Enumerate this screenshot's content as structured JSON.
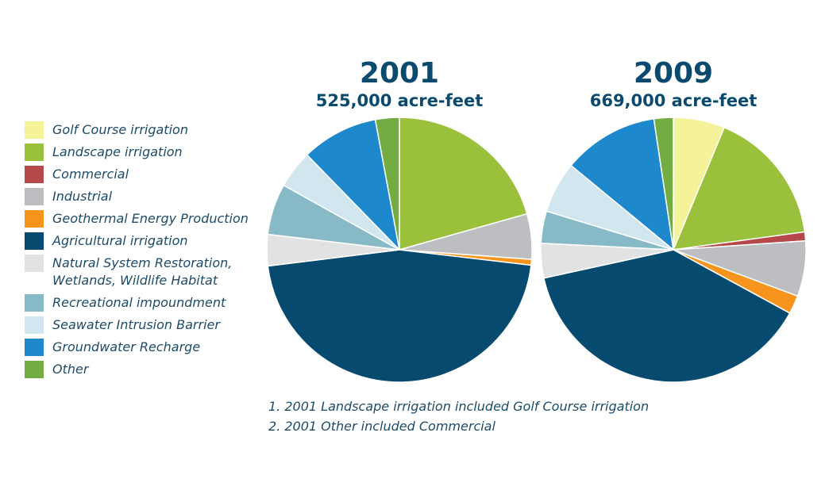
{
  "legend": [
    {
      "label": "Golf Course irrigation",
      "color": "#f5f39a"
    },
    {
      "label": "Landscape irrigation",
      "color": "#9bc13c"
    },
    {
      "label": "Commercial",
      "color": "#b5484b"
    },
    {
      "label": "Industrial",
      "color": "#bdbec2"
    },
    {
      "label": "Geothermal Energy Production",
      "color": "#f7941d"
    },
    {
      "label": "Agricultural irrigation",
      "color": "#074a70"
    },
    {
      "label": "Natural System Restoration,\nWetlands, Wildlife Habitat",
      "color": "#e1e2e3"
    },
    {
      "label": "Recreational impoundment",
      "color": "#87bac6"
    },
    {
      "label": "Seawater Intrusion Barrier",
      "color": "#d1e6ee"
    },
    {
      "label": "Groundwater Recharge",
      "color": "#1e88cc"
    },
    {
      "label": "Other",
      "color": "#72ac43"
    }
  ],
  "chart_data": [
    {
      "type": "pie",
      "title": "2001",
      "subtitle": "525,000 acre-feet",
      "categories": [
        "Golf Course irrigation",
        "Landscape irrigation",
        "Commercial",
        "Industrial",
        "Geothermal Energy Production",
        "Agricultural irrigation",
        "Natural System Restoration, Wetlands, Wildlife Habitat",
        "Recreational impoundment",
        "Seawater Intrusion Barrier",
        "Groundwater Recharge",
        "Other"
      ],
      "values": [
        0,
        20.5,
        0,
        5.5,
        0.7,
        45.9,
        3.8,
        6.2,
        4.6,
        9.3,
        2.9
      ]
    },
    {
      "type": "pie",
      "title": "2009",
      "subtitle": "669,000 acre-feet",
      "categories": [
        "Golf Course irrigation",
        "Landscape irrigation",
        "Commercial",
        "Industrial",
        "Geothermal Energy Production",
        "Agricultural irrigation",
        "Natural System Restoration, Wetlands, Wildlife Habitat",
        "Recreational impoundment",
        "Seawater Intrusion Barrier",
        "Groundwater Recharge",
        "Other"
      ],
      "values": [
        6.4,
        16.9,
        1.1,
        6.9,
        2.3,
        39.4,
        4.3,
        4.0,
        6.4,
        11.9,
        2.4
      ]
    }
  ],
  "notes": [
    "1. 2001 Landscape irrigation included Golf Course irrigation",
    "2. 2001 Other included Commercial"
  ]
}
